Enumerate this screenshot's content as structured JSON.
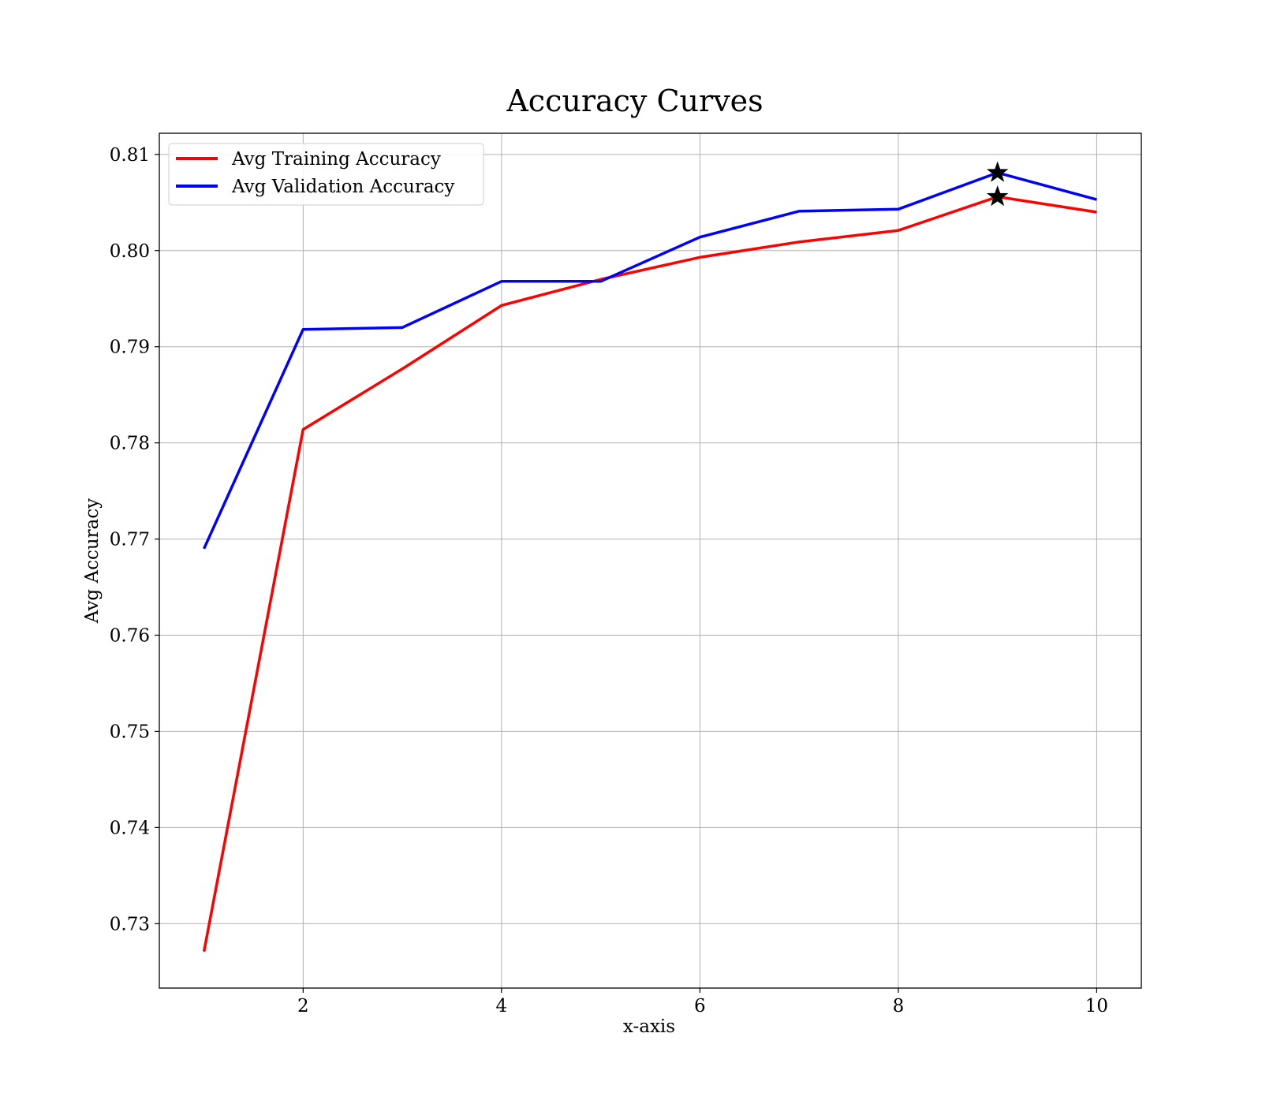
{
  "chart_data": {
    "type": "line",
    "title": "Accuracy Curves",
    "xlabel": "x-axis",
    "ylabel": "Avg Accuracy",
    "xlim": [
      0.55,
      10.45
    ],
    "ylim": [
      0.7233,
      0.8122
    ],
    "x_ticks": [
      2,
      4,
      6,
      8,
      10
    ],
    "x_tick_labels": [
      "2",
      "4",
      "6",
      "8",
      "10"
    ],
    "y_ticks": [
      0.73,
      0.74,
      0.75,
      0.76,
      0.77,
      0.78,
      0.79,
      0.8,
      0.81
    ],
    "y_tick_labels": [
      "0.73",
      "0.74",
      "0.75",
      "0.76",
      "0.77",
      "0.78",
      "0.79",
      "0.80",
      "0.81"
    ],
    "grid": true,
    "legend_position": "top-left",
    "x": [
      1,
      2,
      3,
      4,
      5,
      6,
      7,
      8,
      9,
      10
    ],
    "series": [
      {
        "name": "Avg Training Accuracy",
        "color": "#ff0000",
        "values": [
          0.7271,
          0.7814,
          0.7877,
          0.7943,
          0.797,
          0.7993,
          0.8009,
          0.8021,
          0.8056,
          0.804
        ],
        "marker": {
          "x": 9,
          "y": 0.8056,
          "symbol": "star"
        }
      },
      {
        "name": "Avg Validation Accuracy",
        "color": "#0000ff",
        "values": [
          0.769,
          0.7918,
          0.792,
          0.7968,
          0.7968,
          0.8014,
          0.8041,
          0.8043,
          0.8081,
          0.8053
        ],
        "marker": {
          "x": 9,
          "y": 0.8081,
          "symbol": "star"
        }
      }
    ]
  }
}
